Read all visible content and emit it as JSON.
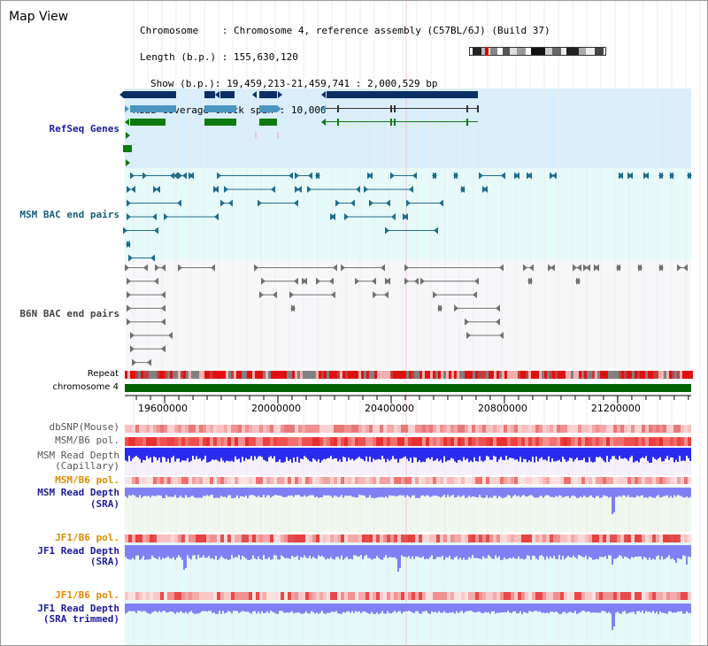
{
  "view_title": "Map View",
  "info": {
    "chromosome_label": "Chromosome",
    "chromosome_value": "Chromosome 4, reference assembly (C57BL/6J) (Build 37)",
    "length_label": "Length (b.p.)",
    "length_value": "155,630,120",
    "show_label": "Show (b.p.)",
    "show_value": "19,459,213-21,459,741 : 2,000,529 bp",
    "span_label": "Read coverage check span",
    "span_value": "10,000"
  },
  "tracks": {
    "refseq": "RefSeq Genes",
    "msm_bac": "MSM BAC end pairs",
    "b6n_bac": "B6N BAC end pairs",
    "repeat": "Repeat",
    "chromosome": "chromosome 4",
    "dbsnp": "dbSNP(Mouse)",
    "msm_pol": "MSM/B6 pol.",
    "msm_depth_cap_1": "MSM Read Depth",
    "msm_depth_cap_2": "(Capillary)",
    "msm_pol2": "MSM/B6 pol.",
    "msm_depth_sra_1": "MSM Read Depth",
    "msm_depth_sra_2": "(SRA)",
    "jf1_pol": "JF1/B6 pol.",
    "jf1_depth_sra_1": "JF1 Read Depth",
    "jf1_depth_sra_2": "(SRA)",
    "jf1_pol2": "JF1/B6 pol.",
    "jf1_depth_trim_1": "JF1 Read Depth",
    "jf1_depth_trim_2": "(SRA trimmed)"
  },
  "axis": {
    "ticks": [
      {
        "value": 19600000,
        "label": "19600000"
      },
      {
        "value": 20000000,
        "label": "20000000"
      },
      {
        "value": 20400000,
        "label": "20400000"
      },
      {
        "value": 20800000,
        "label": "20800000"
      },
      {
        "value": 21200000,
        "label": "21200000"
      }
    ],
    "start": 19459213,
    "end": 21459741
  },
  "colors": {
    "refseq_band": "#d9eefa",
    "msm_band": "#e6fafa",
    "b6n_band": "#f7f7fa",
    "sra_band": "#eef8ee",
    "jf1_band": "#e4fafa",
    "navy": "#0c2f66",
    "steel": "#4a96c0",
    "green": "#0d7a0d",
    "teal": "#1f6d8c",
    "gray": "#707070",
    "chrom": "#006400",
    "blue_depth": "#2b2bf0",
    "light_depth": "#8080f4",
    "pol_red": "#f04040"
  }
}
